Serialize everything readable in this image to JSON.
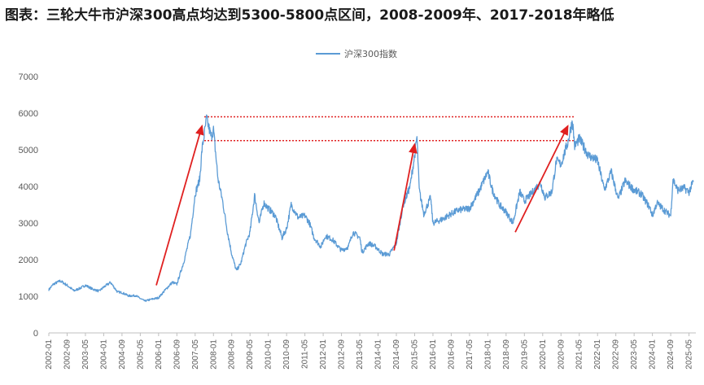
{
  "header": {
    "title": "图表：三轮大牛市沪深300高点均达到5300-5800点区间，2008-2009年、2017-2018年略低"
  },
  "colors": {
    "series": "#5b9bd5",
    "arrow": "#e02020",
    "reference_line": "#e02020",
    "axis": "#bfbfbf",
    "tick_text": "#595959"
  },
  "chart_data": {
    "type": "line",
    "title": "",
    "xlabel": "",
    "ylabel": "",
    "ylim": [
      0,
      7000
    ],
    "yticks": [
      0,
      1000,
      2000,
      3000,
      4000,
      5000,
      6000,
      7000
    ],
    "xticks": [
      "2002-01",
      "2002-09",
      "2003-05",
      "2004-01",
      "2004-09",
      "2005-05",
      "2006-01",
      "2006-09",
      "2007-05",
      "2008-01",
      "2008-09",
      "2009-05",
      "2010-01",
      "2010-09",
      "2011-05",
      "2012-01",
      "2012-09",
      "2013-05",
      "2014-01",
      "2014-09",
      "2015-05",
      "2016-01",
      "2016-09",
      "2017-05",
      "2018-01",
      "2018-09",
      "2019-05",
      "2020-01",
      "2020-09",
      "2021-05",
      "2022-01",
      "2022-09",
      "2023-05",
      "2024-01",
      "2024-09",
      "2025-05"
    ],
    "legend": {
      "position": "top-center",
      "entries": [
        "沪深300指数"
      ]
    },
    "grid": false,
    "series": [
      {
        "name": "沪深300指数",
        "points": [
          [
            "2002-01",
            1180
          ],
          [
            "2002-03",
            1330
          ],
          [
            "2002-06",
            1420
          ],
          [
            "2002-09",
            1300
          ],
          [
            "2002-12",
            1150
          ],
          [
            "2003-03",
            1230
          ],
          [
            "2003-05",
            1300
          ],
          [
            "2003-08",
            1200
          ],
          [
            "2003-11",
            1140
          ],
          [
            "2004-01",
            1250
          ],
          [
            "2004-04",
            1380
          ],
          [
            "2004-07",
            1120
          ],
          [
            "2004-09",
            1100
          ],
          [
            "2004-12",
            1010
          ],
          [
            "2005-03",
            1020
          ],
          [
            "2005-05",
            940
          ],
          [
            "2005-07",
            870
          ],
          [
            "2005-10",
            920
          ],
          [
            "2006-01",
            960
          ],
          [
            "2006-04",
            1180
          ],
          [
            "2006-07",
            1380
          ],
          [
            "2006-09",
            1330
          ],
          [
            "2006-12",
            1930
          ],
          [
            "2007-03",
            2700
          ],
          [
            "2007-05",
            3800
          ],
          [
            "2007-07",
            4200
          ],
          [
            "2007-08",
            5000
          ],
          [
            "2007-10",
            5850
          ],
          [
            "2007-12",
            5350
          ],
          [
            "2008-01",
            5550
          ],
          [
            "2008-03",
            4200
          ],
          [
            "2008-05",
            3600
          ],
          [
            "2008-07",
            2800
          ],
          [
            "2008-09",
            2150
          ],
          [
            "2008-11",
            1700
          ],
          [
            "2009-01",
            1900
          ],
          [
            "2009-03",
            2400
          ],
          [
            "2009-05",
            2750
          ],
          [
            "2009-07",
            3750
          ],
          [
            "2009-09",
            3000
          ],
          [
            "2009-11",
            3550
          ],
          [
            "2010-01",
            3400
          ],
          [
            "2010-04",
            3200
          ],
          [
            "2010-07",
            2600
          ],
          [
            "2010-09",
            2850
          ],
          [
            "2010-11",
            3500
          ],
          [
            "2011-02",
            3150
          ],
          [
            "2011-05",
            3200
          ],
          [
            "2011-07",
            3000
          ],
          [
            "2011-09",
            2600
          ],
          [
            "2011-12",
            2350
          ],
          [
            "2012-02",
            2650
          ],
          [
            "2012-05",
            2550
          ],
          [
            "2012-09",
            2250
          ],
          [
            "2012-12",
            2350
          ],
          [
            "2013-02",
            2750
          ],
          [
            "2013-05",
            2600
          ],
          [
            "2013-06",
            2200
          ],
          [
            "2013-09",
            2450
          ],
          [
            "2013-12",
            2350
          ],
          [
            "2014-03",
            2150
          ],
          [
            "2014-06",
            2150
          ],
          [
            "2014-09",
            2450
          ],
          [
            "2014-12",
            3500
          ],
          [
            "2015-03",
            4000
          ],
          [
            "2015-05",
            4850
          ],
          [
            "2015-06",
            5350
          ],
          [
            "2015-07",
            3900
          ],
          [
            "2015-09",
            3250
          ],
          [
            "2015-12",
            3700
          ],
          [
            "2016-01",
            3000
          ],
          [
            "2016-05",
            3100
          ],
          [
            "2016-09",
            3250
          ],
          [
            "2016-12",
            3350
          ],
          [
            "2017-05",
            3400
          ],
          [
            "2017-09",
            3850
          ],
          [
            "2018-01",
            4400
          ],
          [
            "2018-03",
            3900
          ],
          [
            "2018-06",
            3500
          ],
          [
            "2018-09",
            3300
          ],
          [
            "2018-12",
            3000
          ],
          [
            "2019-03",
            3850
          ],
          [
            "2019-05",
            3600
          ],
          [
            "2019-08",
            3800
          ],
          [
            "2019-12",
            4100
          ],
          [
            "2020-02",
            3700
          ],
          [
            "2020-05",
            3850
          ],
          [
            "2020-07",
            4700
          ],
          [
            "2020-09",
            4600
          ],
          [
            "2020-12",
            5200
          ],
          [
            "2021-02",
            5800
          ],
          [
            "2021-03",
            5100
          ],
          [
            "2021-05",
            5300
          ],
          [
            "2021-09",
            4850
          ],
          [
            "2022-01",
            4700
          ],
          [
            "2022-04",
            3900
          ],
          [
            "2022-07",
            4400
          ],
          [
            "2022-10",
            3650
          ],
          [
            "2023-01",
            4150
          ],
          [
            "2023-05",
            3900
          ],
          [
            "2023-08",
            3800
          ],
          [
            "2023-12",
            3400
          ],
          [
            "2024-01",
            3200
          ],
          [
            "2024-03",
            3550
          ],
          [
            "2024-07",
            3300
          ],
          [
            "2024-09",
            3200
          ],
          [
            "2024-10",
            4200
          ],
          [
            "2024-12",
            3900
          ],
          [
            "2025-03",
            3950
          ],
          [
            "2025-05",
            3850
          ],
          [
            "2025-07",
            4150
          ]
        ]
      }
    ],
    "reference_lines": [
      5900,
      5250
    ],
    "annotations": [
      {
        "type": "arrow",
        "from": [
          "2005-12",
          1300
        ],
        "to": [
          "2007-08",
          5650
        ]
      },
      {
        "type": "arrow",
        "from": [
          "2014-08",
          2250
        ],
        "to": [
          "2015-05",
          5150
        ]
      },
      {
        "type": "arrow",
        "from": [
          "2019-01",
          2750
        ],
        "to": [
          "2020-12",
          5650
        ]
      }
    ]
  }
}
